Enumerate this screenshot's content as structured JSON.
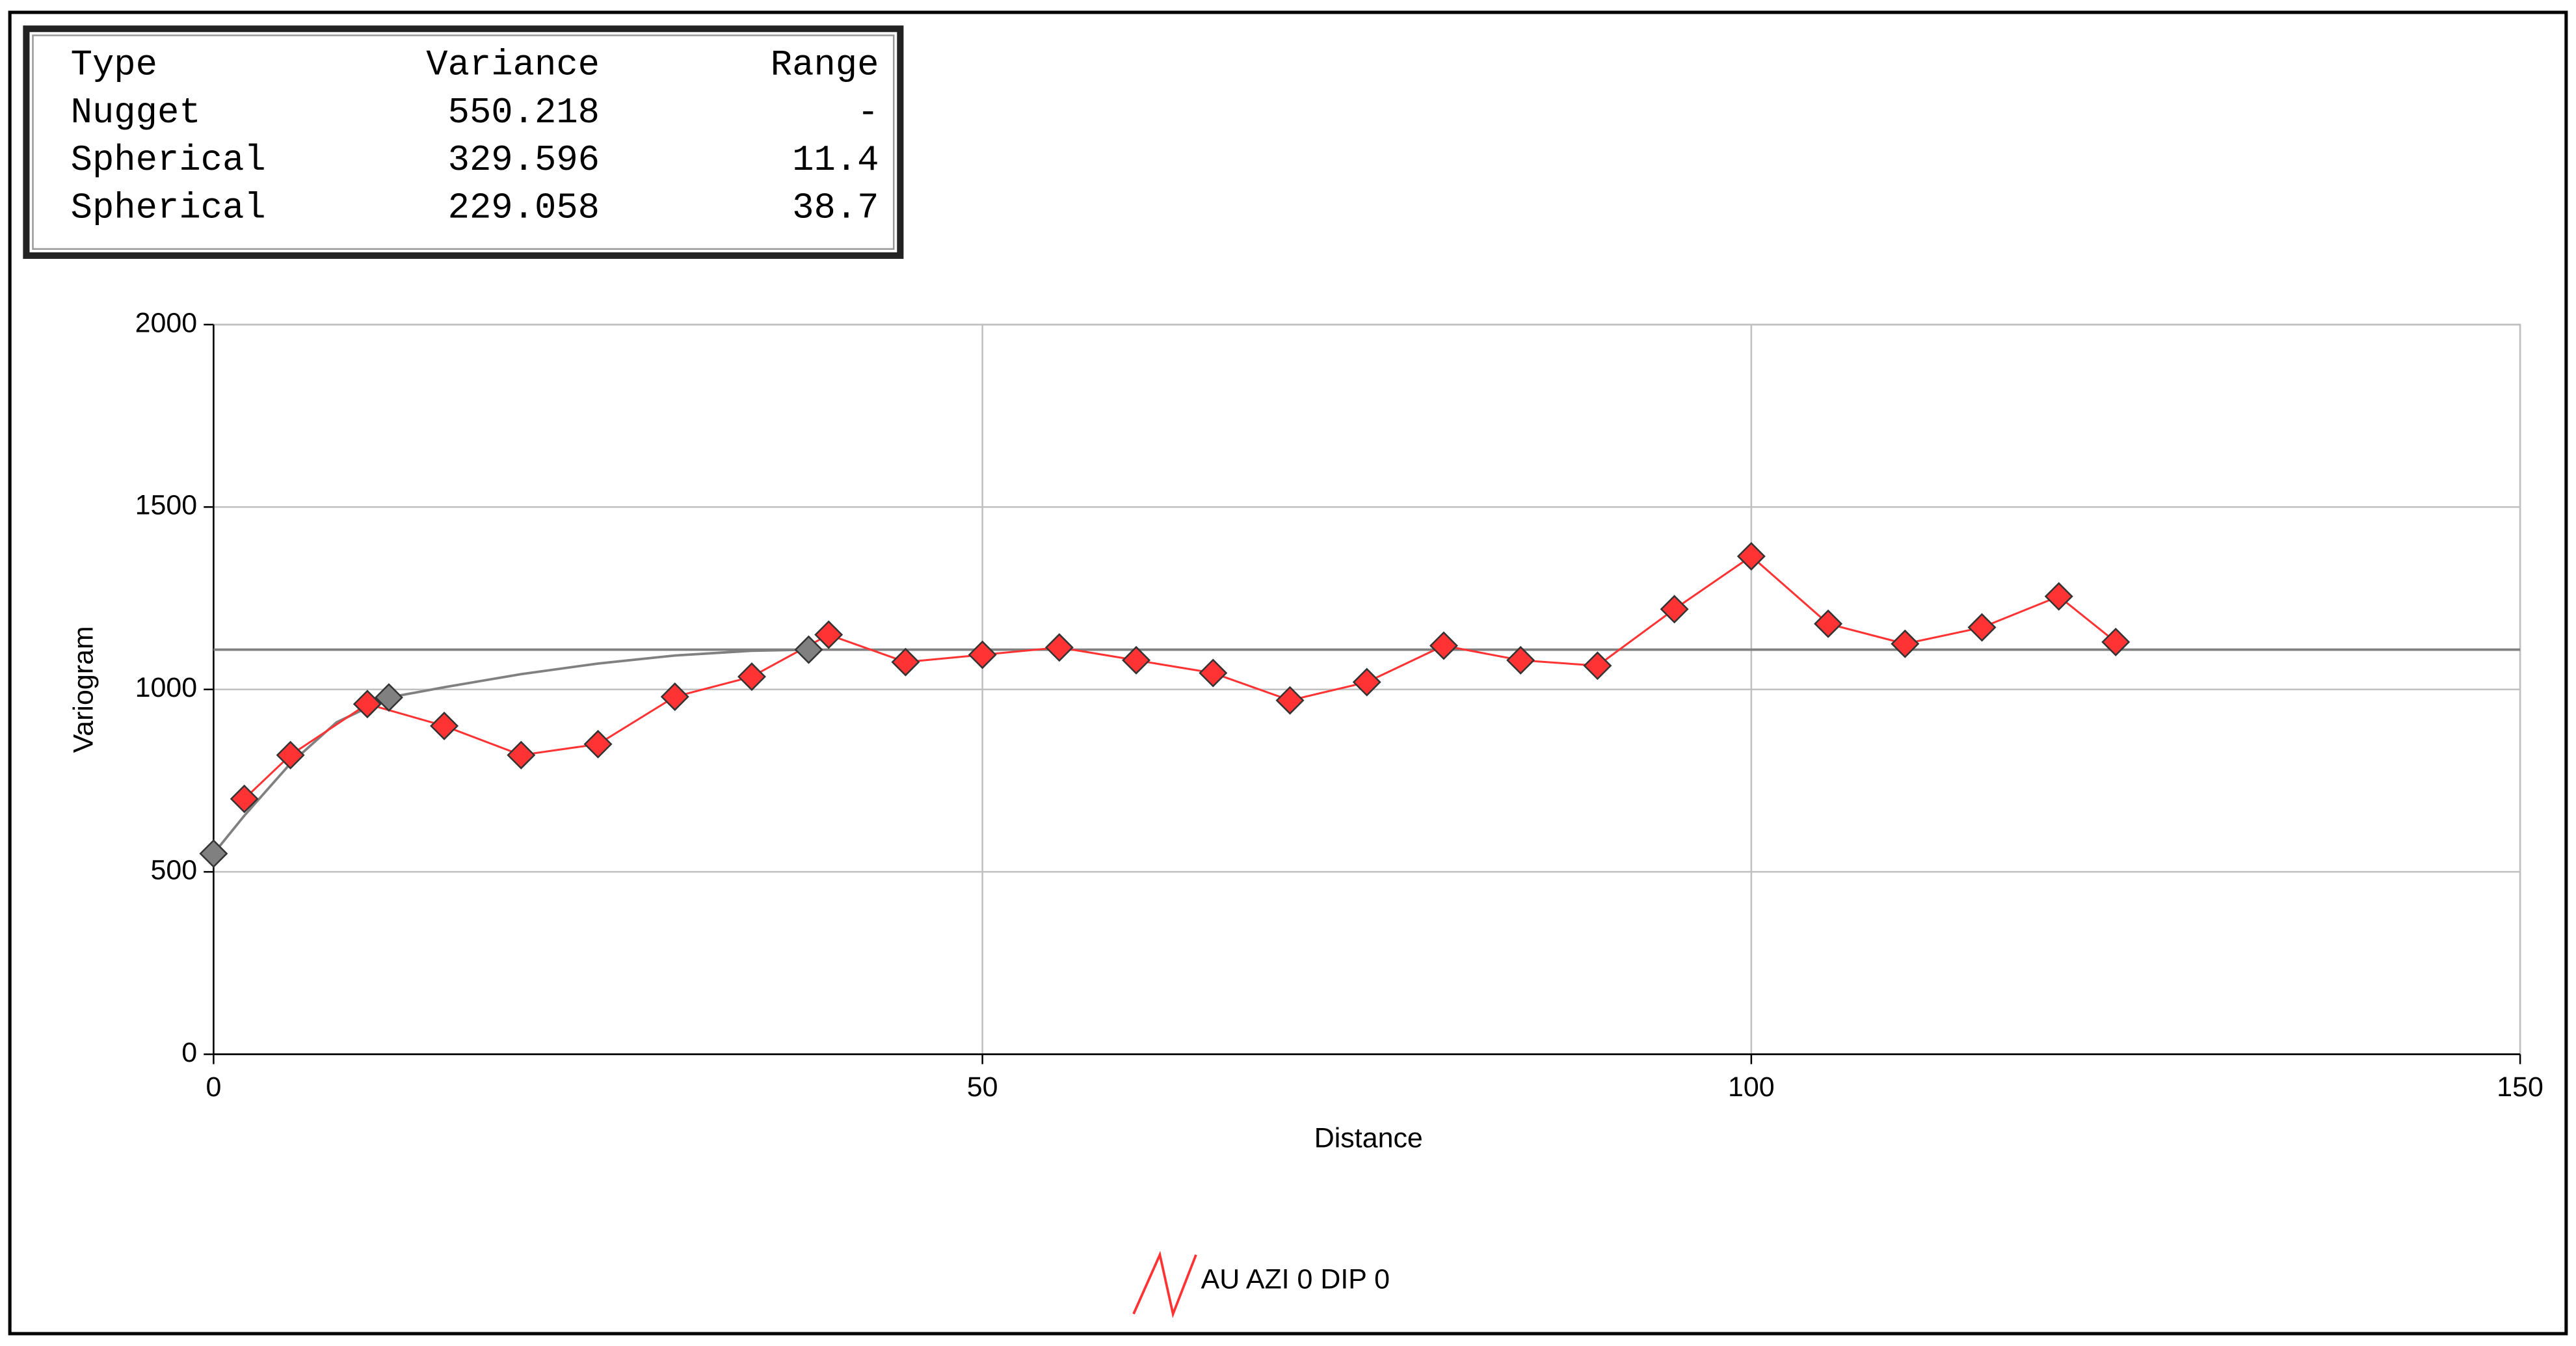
{
  "table": {
    "columns": [
      "Type",
      "Variance",
      "Range"
    ],
    "rows": [
      [
        "Nugget",
        "550.218",
        "-"
      ],
      [
        "Spherical",
        "329.596",
        "11.4"
      ],
      [
        "Spherical",
        "229.058",
        "38.7"
      ]
    ]
  },
  "chart_data": {
    "type": "line",
    "x_label": "Distance",
    "y_label": "Variogram",
    "xlim": [
      0,
      150
    ],
    "xticks": [
      0,
      50,
      100,
      150
    ],
    "ylim": [
      0,
      2000
    ],
    "yticks": [
      0,
      500,
      1000,
      1500,
      2000
    ],
    "grid": true,
    "legend": "bottom",
    "series": [
      {
        "name": "AU AZI 0 DIP 0",
        "color": "#ff3333",
        "x": [
          2,
          5,
          10,
          15,
          20,
          25,
          30,
          35,
          40,
          45,
          50,
          55,
          60,
          65,
          70,
          75,
          80,
          85,
          90,
          95,
          100,
          105,
          110,
          115,
          120,
          123.7
        ],
        "values": [
          700,
          820,
          960,
          900,
          820,
          850,
          980,
          1035,
          1150,
          1075,
          1095,
          1115,
          1080,
          1045,
          970,
          1020,
          1120,
          1080,
          1065,
          1220,
          1365,
          1180,
          1125,
          1170,
          1255,
          1130
        ]
      }
    ],
    "model": {
      "color": "#808080",
      "x": [
        0,
        2,
        5,
        8,
        11.4,
        15,
        20,
        25,
        30,
        35,
        38.7
      ],
      "values": [
        550,
        654,
        797,
        910,
        978,
        1006,
        1042,
        1071,
        1093,
        1106,
        1109
      ]
    },
    "model_points": {
      "x": [
        0,
        11.4,
        38.7
      ],
      "values": [
        550,
        978,
        1109
      ]
    },
    "sill": 1109
  }
}
